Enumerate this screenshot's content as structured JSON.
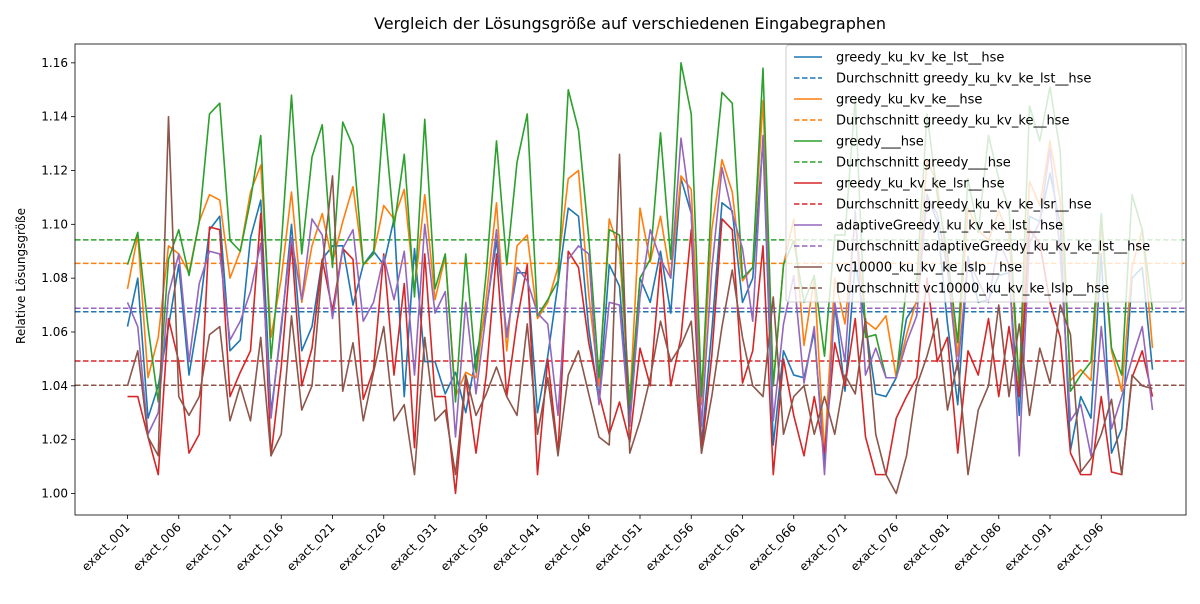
{
  "chart_data": {
    "type": "line",
    "title": "Vergleich der Lösungsgröße auf verschiedenen Eingabegraphen",
    "xlabel": "",
    "ylabel": "Relative Lösungsgröße",
    "ylim": [
      0.992,
      1.167
    ],
    "yticks": [
      1.0,
      1.02,
      1.04,
      1.06,
      1.08,
      1.1,
      1.12,
      1.14,
      1.16
    ],
    "ytick_labels": [
      "1.00",
      "1.02",
      "1.04",
      "1.06",
      "1.08",
      "1.10",
      "1.12",
      "1.14",
      "1.16"
    ],
    "xtick_labels": [
      "exact_001",
      "exact_006",
      "exact_011",
      "exact_016",
      "exact_021",
      "exact_026",
      "exact_031",
      "exact_036",
      "exact_041",
      "exact_046",
      "exact_051",
      "exact_056",
      "exact_061",
      "exact_066",
      "exact_071",
      "exact_076",
      "exact_081",
      "exact_086",
      "exact_091",
      "exact_096"
    ],
    "legend_position": "top-right",
    "grid": false,
    "series": [
      {
        "name": "greedy_ku_kv_ke_lst__hse",
        "avg_name": "Durchschnitt greedy_ku_kv_ke_lst__hse",
        "color": "#1f77b4",
        "average": 1.0675,
        "values": [
          1.062,
          1.08,
          1.028,
          1.04,
          1.062,
          1.085,
          1.044,
          1.067,
          1.098,
          1.103,
          1.053,
          1.057,
          1.095,
          1.109,
          1.03,
          1.061,
          1.1,
          1.053,
          1.062,
          1.087,
          1.092,
          1.092,
          1.07,
          1.085,
          1.09,
          1.085,
          1.102,
          1.036,
          1.091,
          1.049,
          1.049,
          1.037,
          1.045,
          1.03,
          1.051,
          1.068,
          1.094,
          1.059,
          1.082,
          1.082,
          1.03,
          1.051,
          1.078,
          1.106,
          1.103,
          1.061,
          1.034,
          1.085,
          1.077,
          1.029,
          1.08,
          1.071,
          1.09,
          1.067,
          1.117,
          1.104,
          1.018,
          1.06,
          1.108,
          1.105,
          1.071,
          1.08,
          1.131,
          1.018,
          1.053,
          1.044,
          1.043,
          1.06,
          1.012,
          1.07,
          1.038,
          1.086,
          1.063,
          1.037,
          1.036,
          1.043,
          1.065,
          1.071,
          1.111,
          1.101,
          1.063,
          1.033,
          1.088,
          1.071,
          1.072,
          1.081,
          1.082,
          1.029,
          1.103,
          1.101,
          1.119,
          1.1,
          1.016,
          1.036,
          1.028,
          1.089,
          1.015,
          1.024,
          1.08,
          1.084,
          1.046
        ]
      },
      {
        "name": "greedy_ku_kv_ke__hse",
        "avg_name": "Durchschnitt greedy_ku_kv_ke__hse",
        "color": "#ff7f0e",
        "average": 1.0855,
        "values": [
          1.076,
          1.096,
          1.043,
          1.058,
          1.092,
          1.089,
          1.082,
          1.101,
          1.111,
          1.109,
          1.08,
          1.09,
          1.112,
          1.122,
          1.058,
          1.08,
          1.112,
          1.071,
          1.092,
          1.104,
          1.086,
          1.101,
          1.114,
          1.085,
          1.089,
          1.107,
          1.102,
          1.113,
          1.075,
          1.111,
          1.072,
          1.088,
          1.036,
          1.045,
          1.043,
          1.073,
          1.108,
          1.053,
          1.092,
          1.096,
          1.065,
          1.071,
          1.084,
          1.117,
          1.12,
          1.074,
          1.04,
          1.102,
          1.09,
          1.033,
          1.106,
          1.086,
          1.103,
          1.08,
          1.118,
          1.113,
          1.033,
          1.098,
          1.124,
          1.112,
          1.079,
          1.084,
          1.146,
          1.04,
          1.085,
          1.102,
          1.055,
          1.08,
          1.015,
          1.08,
          1.063,
          1.102,
          1.064,
          1.061,
          1.066,
          1.043,
          1.059,
          1.072,
          1.124,
          1.115,
          1.084,
          1.051,
          1.106,
          1.098,
          1.094,
          1.105,
          1.096,
          1.039,
          1.116,
          1.107,
          1.131,
          1.109,
          1.042,
          1.046,
          1.042,
          1.1,
          1.053,
          1.038,
          1.084,
          1.098,
          1.054
        ]
      },
      {
        "name": "greedy___hse",
        "avg_name": "Durchschnitt greedy___hse",
        "color": "#2ca02c",
        "average": 1.0942,
        "values": [
          1.085,
          1.097,
          1.062,
          1.034,
          1.087,
          1.098,
          1.081,
          1.101,
          1.141,
          1.145,
          1.094,
          1.09,
          1.109,
          1.133,
          1.05,
          1.092,
          1.148,
          1.089,
          1.125,
          1.137,
          1.084,
          1.138,
          1.129,
          1.085,
          1.089,
          1.141,
          1.099,
          1.126,
          1.073,
          1.139,
          1.076,
          1.089,
          1.034,
          1.089,
          1.045,
          1.082,
          1.131,
          1.085,
          1.123,
          1.141,
          1.066,
          1.072,
          1.079,
          1.15,
          1.135,
          1.095,
          1.043,
          1.098,
          1.096,
          1.033,
          1.08,
          1.087,
          1.134,
          1.087,
          1.16,
          1.141,
          1.036,
          1.111,
          1.149,
          1.145,
          1.08,
          1.084,
          1.158,
          1.04,
          1.085,
          1.094,
          1.071,
          1.081,
          1.051,
          1.096,
          1.096,
          1.147,
          1.058,
          1.059,
          1.043,
          1.043,
          1.077,
          1.079,
          1.141,
          1.111,
          1.089,
          1.056,
          1.117,
          1.097,
          1.133,
          1.117,
          1.106,
          1.039,
          1.144,
          1.131,
          1.151,
          1.127,
          1.038,
          1.044,
          1.049,
          1.104,
          1.054,
          1.044,
          1.111,
          1.098,
          1.068
        ]
      },
      {
        "name": "greedy_ku_kv_ke_lsr__hse",
        "avg_name": "Durchschnitt greedy_ku_kv_ke_lsr__hse",
        "color": "#d62728",
        "average": 1.0492,
        "values": [
          1.036,
          1.036,
          1.021,
          1.007,
          1.065,
          1.049,
          1.015,
          1.022,
          1.099,
          1.098,
          1.036,
          1.045,
          1.053,
          1.104,
          1.014,
          1.047,
          1.093,
          1.04,
          1.054,
          1.087,
          1.068,
          1.091,
          1.087,
          1.035,
          1.046,
          1.089,
          1.044,
          1.078,
          1.017,
          1.089,
          1.036,
          1.036,
          1.0,
          1.043,
          1.015,
          1.044,
          1.089,
          1.036,
          1.064,
          1.085,
          1.007,
          1.05,
          1.015,
          1.09,
          1.084,
          1.056,
          1.037,
          1.022,
          1.034,
          1.019,
          1.054,
          1.04,
          1.086,
          1.04,
          1.058,
          1.098,
          1.015,
          1.051,
          1.102,
          1.098,
          1.041,
          1.053,
          1.092,
          1.007,
          1.05,
          1.029,
          1.014,
          1.036,
          1.015,
          1.056,
          1.04,
          1.065,
          1.021,
          1.007,
          1.007,
          1.028,
          1.036,
          1.043,
          1.08,
          1.049,
          1.058,
          1.015,
          1.053,
          1.044,
          1.065,
          1.036,
          1.062,
          1.036,
          1.098,
          1.093,
          1.071,
          1.058,
          1.015,
          1.007,
          1.007,
          1.036,
          1.008,
          1.007,
          1.043,
          1.053,
          1.036
        ]
      },
      {
        "name": "adaptiveGreedy_ku_kv_ke_lst__hse",
        "avg_name": "Durchschnitt adaptiveGreedy_ku_kv_ke_lst__hse",
        "color": "#9467bd",
        "average": 1.0688,
        "values": [
          1.071,
          1.062,
          1.022,
          1.03,
          1.074,
          1.089,
          1.049,
          1.078,
          1.09,
          1.089,
          1.057,
          1.064,
          1.075,
          1.093,
          1.028,
          1.063,
          1.095,
          1.072,
          1.102,
          1.096,
          1.065,
          1.091,
          1.098,
          1.064,
          1.071,
          1.088,
          1.072,
          1.09,
          1.044,
          1.1,
          1.067,
          1.075,
          1.021,
          1.071,
          1.037,
          1.067,
          1.098,
          1.058,
          1.084,
          1.079,
          1.067,
          1.063,
          1.029,
          1.087,
          1.092,
          1.089,
          1.033,
          1.071,
          1.07,
          1.025,
          1.073,
          1.098,
          1.087,
          1.08,
          1.132,
          1.104,
          1.025,
          1.083,
          1.121,
          1.104,
          1.091,
          1.064,
          1.133,
          1.027,
          1.063,
          1.081,
          1.041,
          1.062,
          1.007,
          1.071,
          1.049,
          1.105,
          1.044,
          1.054,
          1.043,
          1.043,
          1.056,
          1.066,
          1.11,
          1.104,
          1.083,
          1.046,
          1.087,
          1.079,
          1.071,
          1.094,
          1.085,
          1.014,
          1.093,
          1.101,
          1.128,
          1.089,
          1.027,
          1.033,
          1.014,
          1.062,
          1.024,
          1.036,
          1.05,
          1.062,
          1.031
        ]
      },
      {
        "name": "vc10000_ku_kv_ke_lslp__hse",
        "avg_name": "Durchschnitt vc10000_ku_kv_ke_lslp__hse",
        "color": "#8c564b",
        "average": 1.0402,
        "values": [
          1.04,
          1.053,
          1.021,
          1.014,
          1.14,
          1.036,
          1.029,
          1.036,
          1.059,
          1.062,
          1.027,
          1.04,
          1.027,
          1.058,
          1.014,
          1.022,
          1.066,
          1.031,
          1.04,
          1.084,
          1.118,
          1.038,
          1.056,
          1.027,
          1.045,
          1.062,
          1.027,
          1.033,
          1.007,
          1.058,
          1.027,
          1.031,
          1.007,
          1.044,
          1.029,
          1.037,
          1.047,
          1.036,
          1.029,
          1.063,
          1.022,
          1.043,
          1.014,
          1.044,
          1.053,
          1.037,
          1.021,
          1.018,
          1.126,
          1.015,
          1.027,
          1.043,
          1.064,
          1.049,
          1.055,
          1.064,
          1.015,
          1.036,
          1.062,
          1.083,
          1.058,
          1.04,
          1.036,
          1.073,
          1.022,
          1.036,
          1.04,
          1.022,
          1.036,
          1.022,
          1.044,
          1.037,
          1.065,
          1.022,
          1.007,
          1.0,
          1.014,
          1.04,
          1.051,
          1.065,
          1.031,
          1.049,
          1.007,
          1.031,
          1.04,
          1.07,
          1.036,
          1.063,
          1.029,
          1.054,
          1.041,
          1.07,
          1.059,
          1.008,
          1.013,
          1.022,
          1.035,
          1.007,
          1.044,
          1.04,
          1.039
        ]
      }
    ]
  }
}
